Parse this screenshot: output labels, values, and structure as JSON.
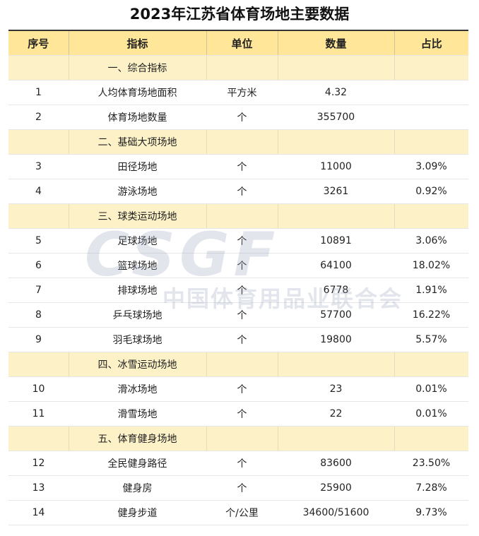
{
  "title": "2023年江苏省体育场地主要数据",
  "watermark": {
    "logo": "CSGF",
    "text": "中国体育用品业联合会"
  },
  "table": {
    "header": [
      "序号",
      "指标",
      "单位",
      "数量",
      "占比"
    ],
    "rows": [
      {
        "section": "一、综合指标"
      },
      {
        "cells": [
          "1",
          "人均体育场地面积",
          "平方米",
          "4.32"
        ]
      },
      {
        "cells": [
          "2",
          "体育场地数量",
          "个",
          "355700"
        ]
      },
      {
        "section": "二、基础大项场地"
      },
      {
        "cells": [
          "3",
          "田径场地",
          "个",
          "11000",
          "3.09%"
        ]
      },
      {
        "cells": [
          "4",
          "游泳场地",
          "个",
          "3261",
          "0.92%"
        ]
      },
      {
        "section": "三、球类运动场地"
      },
      {
        "cells": [
          "5",
          "足球场地",
          "个",
          "10891",
          "3.06%"
        ]
      },
      {
        "cells": [
          "6",
          "篮球场地",
          "个",
          "64100",
          "18.02%"
        ]
      },
      {
        "cells": [
          "7",
          "排球场地",
          "个",
          "6778",
          "1.91%"
        ]
      },
      {
        "cells": [
          "8",
          "乒乓球场地",
          "个",
          "57700",
          "16.22%"
        ]
      },
      {
        "cells": [
          "9",
          "羽毛球场地",
          "个",
          "19800",
          "5.57%"
        ]
      },
      {
        "section": "四、冰雪运动场地"
      },
      {
        "cells": [
          "10",
          "滑冰场地",
          "个",
          "23",
          "0.01%"
        ]
      },
      {
        "cells": [
          "11",
          "滑雪场地",
          "个",
          "22",
          "0.01%"
        ]
      },
      {
        "section": "五、体育健身场地"
      },
      {
        "cells": [
          "12",
          "全民健身路径",
          "个",
          "83600",
          "23.50%"
        ]
      },
      {
        "cells": [
          "13",
          "健身房",
          "个",
          "25900",
          "7.28%"
        ]
      },
      {
        "cells": [
          "14",
          "健身步道",
          "个/公里",
          "34600/51600",
          "9.73%"
        ]
      }
    ]
  }
}
